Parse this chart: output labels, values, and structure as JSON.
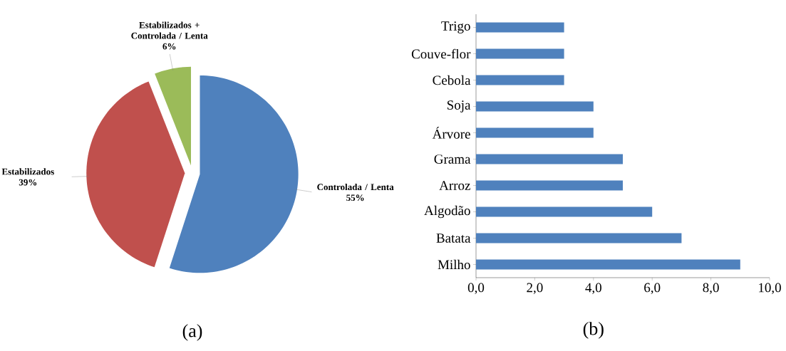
{
  "chart_data": [
    {
      "type": "pie",
      "categories": [
        "Controlada / Lenta",
        "Estabilizados",
        "Estabilizados + Controlada / Lenta"
      ],
      "values": [
        55,
        39,
        6
      ],
      "colors": [
        "#4f81bd",
        "#c0504d",
        "#9bbb59"
      ],
      "value_labels": [
        "55%",
        "39%",
        "6%"
      ],
      "annotations": [
        "(a)"
      ]
    },
    {
      "type": "bar",
      "orientation": "horizontal",
      "categories": [
        "Trigo",
        "Couve-flor",
        "Cebola",
        "Soja",
        "Árvore",
        "Grama",
        "Arroz",
        "Algodão",
        "Batata",
        "Milho"
      ],
      "values": [
        3,
        3,
        3,
        4,
        4,
        5,
        5,
        6,
        7,
        9
      ],
      "color": "#4f81bd",
      "xlim": [
        0,
        10
      ],
      "xticks": [
        {
          "value": 0,
          "label": "0,0"
        },
        {
          "value": 2,
          "label": "2,0"
        },
        {
          "value": 4,
          "label": "4,0"
        },
        {
          "value": 6,
          "label": "6,0"
        },
        {
          "value": 8,
          "label": "8,0"
        },
        {
          "value": 10,
          "label": "10,0"
        }
      ],
      "annotations": [
        "(b)"
      ]
    }
  ]
}
